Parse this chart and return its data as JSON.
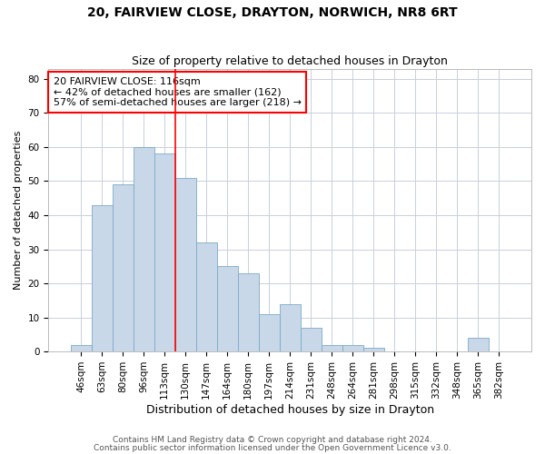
{
  "title1": "20, FAIRVIEW CLOSE, DRAYTON, NORWICH, NR8 6RT",
  "title2": "Size of property relative to detached houses in Drayton",
  "xlabel": "Distribution of detached houses by size in Drayton",
  "ylabel": "Number of detached properties",
  "categories": [
    "46sqm",
    "63sqm",
    "80sqm",
    "96sqm",
    "113sqm",
    "130sqm",
    "147sqm",
    "164sqm",
    "180sqm",
    "197sqm",
    "214sqm",
    "231sqm",
    "248sqm",
    "264sqm",
    "281sqm",
    "298sqm",
    "315sqm",
    "332sqm",
    "348sqm",
    "365sqm",
    "382sqm"
  ],
  "values": [
    2,
    43,
    49,
    60,
    58,
    51,
    32,
    25,
    23,
    11,
    14,
    7,
    2,
    2,
    1,
    0,
    0,
    0,
    0,
    4,
    0
  ],
  "bar_color": "#c8d8e8",
  "bar_edge_color": "#7aaac8",
  "grid_color": "#c8d0dc",
  "vline_color": "red",
  "annotation_line1": "20 FAIRVIEW CLOSE: 116sqm",
  "annotation_line2": "← 42% of detached houses are smaller (162)",
  "annotation_line3": "57% of semi-detached houses are larger (218) →",
  "annotation_box_color": "white",
  "annotation_box_edgecolor": "red",
  "ylim": [
    0,
    83
  ],
  "yticks": [
    0,
    10,
    20,
    30,
    40,
    50,
    60,
    70,
    80
  ],
  "footer1": "Contains HM Land Registry data © Crown copyright and database right 2024.",
  "footer2": "Contains public sector information licensed under the Open Government Licence v3.0.",
  "title1_fontsize": 10,
  "title2_fontsize": 9,
  "xlabel_fontsize": 9,
  "ylabel_fontsize": 8,
  "tick_fontsize": 7.5,
  "annotation_fontsize": 8,
  "footer_fontsize": 6.5,
  "vline_xindex": 4.5
}
